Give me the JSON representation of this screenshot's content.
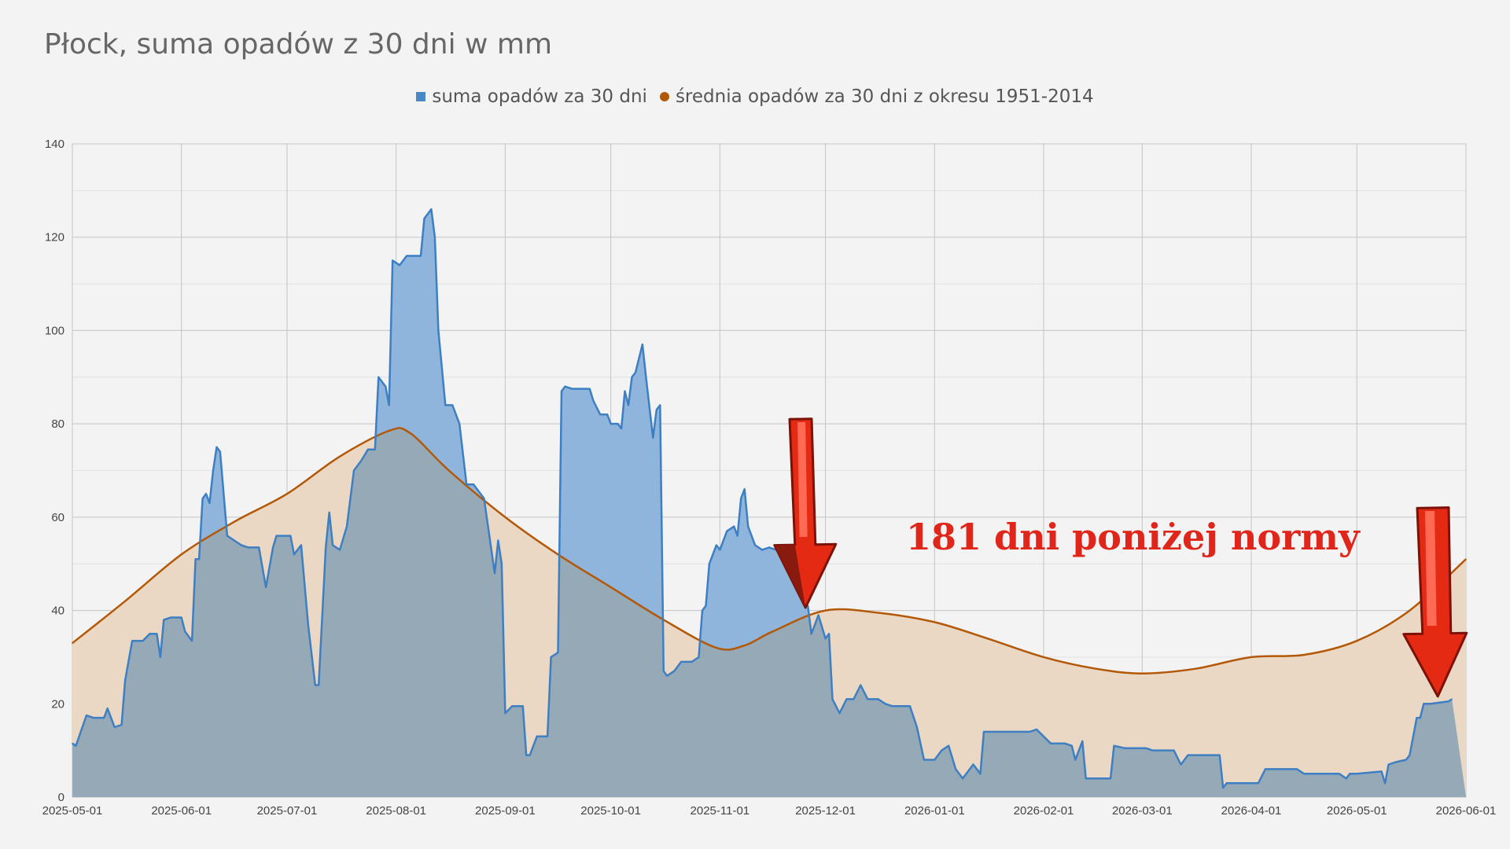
{
  "title": "Płock, suma opadów z 30 dni w mm",
  "legend": {
    "series1": "suma opadów za 30 dni",
    "series2": "średnia opadów za 30 dni z okresu 1951-2014"
  },
  "annotation": "181 dni poniżej normy",
  "colors": {
    "series1_line": "#3d7fc2",
    "series1_fill": "#8fb5dc",
    "series2_line": "#b35806",
    "series2_fill": "#ead8c5",
    "overlap_fill": "#96a9b6",
    "arrow": "#e52a13"
  },
  "chart_data": {
    "type": "area",
    "ylim": [
      0,
      140
    ],
    "yticks": [
      0,
      20,
      40,
      60,
      80,
      100,
      120,
      140
    ],
    "xlim": [
      "2025-05-01",
      "2026-06-01"
    ],
    "xticks": [
      "2025-05-01",
      "2025-06-01",
      "2025-07-01",
      "2025-08-01",
      "2025-09-01",
      "2025-10-01",
      "2025-11-01",
      "2025-12-01",
      "2026-01-01",
      "2026-02-01",
      "2026-03-01",
      "2026-04-01",
      "2026-05-01",
      "2026-06-01"
    ],
    "grid": true,
    "legend_position": "top",
    "series": [
      {
        "name": "suma opadów za 30 dni",
        "points": [
          [
            "2025-05-01",
            11.5
          ],
          [
            "2025-05-02",
            11
          ],
          [
            "2025-05-05",
            17.5
          ],
          [
            "2025-05-07",
            17
          ],
          [
            "2025-05-10",
            17
          ],
          [
            "2025-05-11",
            19
          ],
          [
            "2025-05-13",
            15
          ],
          [
            "2025-05-15",
            15.5
          ],
          [
            "2025-05-16",
            25
          ],
          [
            "2025-05-18",
            33.5
          ],
          [
            "2025-05-21",
            33.5
          ],
          [
            "2025-05-23",
            35
          ],
          [
            "2025-05-25",
            35
          ],
          [
            "2025-05-26",
            30
          ],
          [
            "2025-05-27",
            38
          ],
          [
            "2025-05-29",
            38.5
          ],
          [
            "2025-06-01",
            38.5
          ],
          [
            "2025-06-02",
            35.5
          ],
          [
            "2025-06-04",
            33.5
          ],
          [
            "2025-06-05",
            51
          ],
          [
            "2025-06-06",
            51
          ],
          [
            "2025-06-07",
            64
          ],
          [
            "2025-06-08",
            65
          ],
          [
            "2025-06-09",
            63
          ],
          [
            "2025-06-10",
            70
          ],
          [
            "2025-06-11",
            75
          ],
          [
            "2025-06-12",
            74
          ],
          [
            "2025-06-14",
            56
          ],
          [
            "2025-06-18",
            54
          ],
          [
            "2025-06-20",
            53.5
          ],
          [
            "2025-06-23",
            53.5
          ],
          [
            "2025-06-25",
            45
          ],
          [
            "2025-06-27",
            53.5
          ],
          [
            "2025-06-28",
            56
          ],
          [
            "2025-07-02",
            56
          ],
          [
            "2025-07-03",
            52
          ],
          [
            "2025-07-05",
            54
          ],
          [
            "2025-07-07",
            37
          ],
          [
            "2025-07-09",
            24
          ],
          [
            "2025-07-10",
            24
          ],
          [
            "2025-07-12",
            53.5
          ],
          [
            "2025-07-13",
            61
          ],
          [
            "2025-07-14",
            54
          ],
          [
            "2025-07-16",
            53
          ],
          [
            "2025-07-18",
            58
          ],
          [
            "2025-07-20",
            70
          ],
          [
            "2025-07-22",
            72
          ],
          [
            "2025-07-24",
            74.5
          ],
          [
            "2025-07-26",
            74.5
          ],
          [
            "2025-07-27",
            90
          ],
          [
            "2025-07-29",
            88
          ],
          [
            "2025-07-30",
            84
          ],
          [
            "2025-07-31",
            115
          ],
          [
            "2025-08-02",
            114
          ],
          [
            "2025-08-04",
            116
          ],
          [
            "2025-08-06",
            116
          ],
          [
            "2025-08-08",
            116
          ],
          [
            "2025-08-09",
            124
          ],
          [
            "2025-08-11",
            126
          ],
          [
            "2025-08-12",
            120
          ],
          [
            "2025-08-13",
            100
          ],
          [
            "2025-08-15",
            84
          ],
          [
            "2025-08-17",
            84
          ],
          [
            "2025-08-19",
            80
          ],
          [
            "2025-08-21",
            67
          ],
          [
            "2025-08-23",
            67
          ],
          [
            "2025-08-26",
            64
          ],
          [
            "2025-08-29",
            48
          ],
          [
            "2025-08-30",
            55
          ],
          [
            "2025-08-31",
            50
          ],
          [
            "2025-09-01",
            18
          ],
          [
            "2025-09-03",
            19.5
          ],
          [
            "2025-09-06",
            19.5
          ],
          [
            "2025-09-07",
            9
          ],
          [
            "2025-09-08",
            9
          ],
          [
            "2025-09-10",
            13
          ],
          [
            "2025-09-13",
            13
          ],
          [
            "2025-09-14",
            30
          ],
          [
            "2025-09-16",
            31
          ],
          [
            "2025-09-17",
            87
          ],
          [
            "2025-09-18",
            88
          ],
          [
            "2025-09-20",
            87.5
          ],
          [
            "2025-09-25",
            87.5
          ],
          [
            "2025-09-26",
            85
          ],
          [
            "2025-09-28",
            82
          ],
          [
            "2025-09-30",
            82
          ],
          [
            "2025-10-01",
            80
          ],
          [
            "2025-10-03",
            80
          ],
          [
            "2025-10-04",
            79
          ],
          [
            "2025-10-05",
            87
          ],
          [
            "2025-10-06",
            84
          ],
          [
            "2025-10-07",
            90
          ],
          [
            "2025-10-08",
            91
          ],
          [
            "2025-10-10",
            97
          ],
          [
            "2025-10-11",
            90
          ],
          [
            "2025-10-13",
            77
          ],
          [
            "2025-10-14",
            83
          ],
          [
            "2025-10-15",
            84
          ],
          [
            "2025-10-16",
            27
          ],
          [
            "2025-10-17",
            26
          ],
          [
            "2025-10-19",
            27
          ],
          [
            "2025-10-21",
            29
          ],
          [
            "2025-10-24",
            29
          ],
          [
            "2025-10-26",
            30
          ],
          [
            "2025-10-27",
            40
          ],
          [
            "2025-10-28",
            41
          ],
          [
            "2025-10-29",
            50
          ],
          [
            "2025-10-31",
            54
          ],
          [
            "2025-11-01",
            53
          ],
          [
            "2025-11-03",
            57
          ],
          [
            "2025-11-05",
            58
          ],
          [
            "2025-11-06",
            56
          ],
          [
            "2025-11-07",
            64
          ],
          [
            "2025-11-08",
            66
          ],
          [
            "2025-11-09",
            58
          ],
          [
            "2025-11-11",
            54
          ],
          [
            "2025-11-13",
            53
          ],
          [
            "2025-11-15",
            53.5
          ],
          [
            "2025-11-17",
            53
          ],
          [
            "2025-11-19",
            53
          ],
          [
            "2025-11-21",
            51
          ],
          [
            "2025-11-23",
            44
          ],
          [
            "2025-11-26",
            41
          ],
          [
            "2025-11-27",
            35
          ],
          [
            "2025-11-28",
            37
          ],
          [
            "2025-11-29",
            39
          ],
          [
            "2025-12-01",
            34
          ],
          [
            "2025-12-02",
            35
          ],
          [
            "2025-12-03",
            21
          ],
          [
            "2025-12-05",
            18
          ],
          [
            "2025-12-07",
            21
          ],
          [
            "2025-12-09",
            21
          ],
          [
            "2025-12-11",
            24
          ],
          [
            "2025-12-13",
            21
          ],
          [
            "2025-12-16",
            21
          ],
          [
            "2025-12-18",
            20
          ],
          [
            "2025-12-20",
            19.5
          ],
          [
            "2025-12-25",
            19.5
          ],
          [
            "2025-12-27",
            15
          ],
          [
            "2025-12-29",
            8
          ],
          [
            "2026-01-01",
            8
          ],
          [
            "2026-01-03",
            10
          ],
          [
            "2026-01-05",
            11
          ],
          [
            "2026-01-07",
            6
          ],
          [
            "2026-01-09",
            4
          ],
          [
            "2026-01-12",
            7
          ],
          [
            "2026-01-14",
            5
          ],
          [
            "2026-01-15",
            14
          ],
          [
            "2026-01-17",
            14
          ],
          [
            "2026-01-28",
            14
          ],
          [
            "2026-01-30",
            14.5
          ],
          [
            "2026-02-01",
            13
          ],
          [
            "2026-02-03",
            11.5
          ],
          [
            "2026-02-07",
            11.5
          ],
          [
            "2026-02-09",
            11
          ],
          [
            "2026-02-10",
            8
          ],
          [
            "2026-02-12",
            12
          ],
          [
            "2026-02-13",
            4
          ],
          [
            "2026-02-15",
            4
          ],
          [
            "2026-02-20",
            4
          ],
          [
            "2026-02-21",
            11
          ],
          [
            "2026-02-24",
            10.5
          ],
          [
            "2026-03-02",
            10.5
          ],
          [
            "2026-03-04",
            10
          ],
          [
            "2026-03-10",
            10
          ],
          [
            "2026-03-12",
            7
          ],
          [
            "2026-03-14",
            9
          ],
          [
            "2026-03-20",
            9
          ],
          [
            "2026-03-23",
            9
          ],
          [
            "2026-03-24",
            2
          ],
          [
            "2026-03-25",
            3
          ],
          [
            "2026-03-28",
            3
          ],
          [
            "2026-04-03",
            3
          ],
          [
            "2026-04-05",
            6
          ],
          [
            "2026-04-14",
            6
          ],
          [
            "2026-04-16",
            5
          ],
          [
            "2026-04-26",
            5
          ],
          [
            "2026-04-28",
            4
          ],
          [
            "2026-04-29",
            5
          ],
          [
            "2026-05-01",
            5
          ],
          [
            "2026-05-08",
            5.5
          ],
          [
            "2026-05-09",
            3
          ],
          [
            "2026-05-10",
            7
          ],
          [
            "2026-05-12",
            7.5
          ],
          [
            "2026-05-15",
            8
          ],
          [
            "2026-05-16",
            9
          ],
          [
            "2026-05-18",
            17
          ],
          [
            "2026-05-19",
            17
          ],
          [
            "2026-05-20",
            20
          ],
          [
            "2026-05-22",
            20
          ],
          [
            "2026-05-27",
            20.5
          ],
          [
            "2026-05-28",
            21
          ]
        ]
      },
      {
        "name": "średnia opadów za 30 dni z okresu 1951-2014",
        "points": [
          [
            "2025-05-01",
            33
          ],
          [
            "2025-05-16",
            42
          ],
          [
            "2025-06-01",
            52
          ],
          [
            "2025-06-16",
            59
          ],
          [
            "2025-07-01",
            65
          ],
          [
            "2025-07-16",
            73
          ],
          [
            "2025-07-30",
            78.5
          ],
          [
            "2025-08-05",
            78
          ],
          [
            "2025-08-16",
            70
          ],
          [
            "2025-09-01",
            60
          ],
          [
            "2025-09-16",
            52
          ],
          [
            "2025-10-01",
            45
          ],
          [
            "2025-10-16",
            38
          ],
          [
            "2025-10-31",
            32
          ],
          [
            "2025-11-08",
            32.5
          ],
          [
            "2025-11-16",
            35.5
          ],
          [
            "2025-12-01",
            40
          ],
          [
            "2025-12-16",
            39.5
          ],
          [
            "2026-01-01",
            37.5
          ],
          [
            "2026-01-16",
            34
          ],
          [
            "2026-02-01",
            30
          ],
          [
            "2026-02-16",
            27.5
          ],
          [
            "2026-03-01",
            26.5
          ],
          [
            "2026-03-16",
            27.5
          ],
          [
            "2026-04-01",
            30
          ],
          [
            "2026-04-16",
            30.5
          ],
          [
            "2026-05-01",
            33.5
          ],
          [
            "2026-05-16",
            40
          ],
          [
            "2026-06-01",
            51
          ]
        ]
      }
    ]
  }
}
